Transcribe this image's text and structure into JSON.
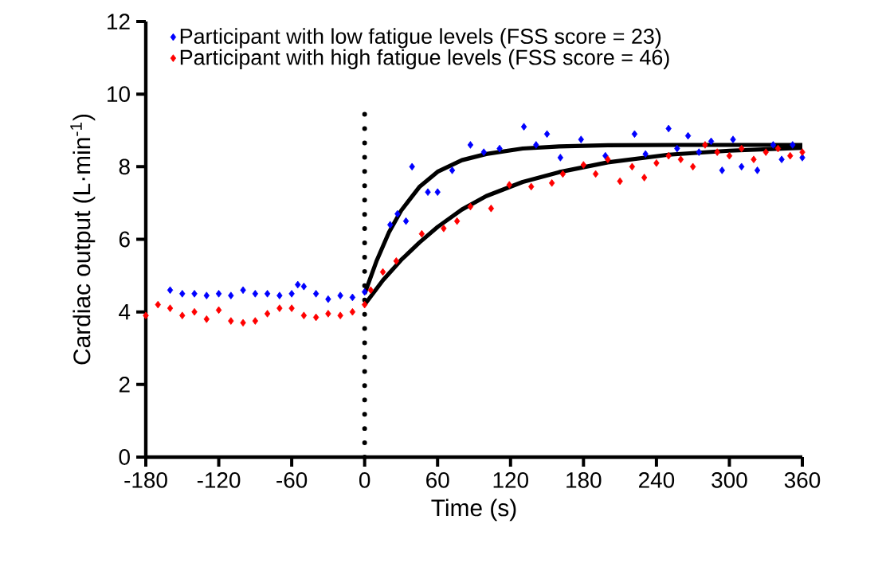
{
  "chart_data": {
    "type": "scatter",
    "xlabel": "Time (s)",
    "ylabel": "Cardiac output (L·min$^{-1}$)",
    "xlim": [
      -180,
      360
    ],
    "ylim": [
      0,
      12
    ],
    "xticks": [
      -180,
      -120,
      -60,
      0,
      60,
      120,
      180,
      240,
      300,
      360
    ],
    "yticks": [
      0,
      2,
      4,
      6,
      8,
      10,
      12
    ],
    "grid": false,
    "legend": "top left",
    "marker": "diamond",
    "series": [
      {
        "name": "Participant with low fatigue levels (FSS score = 23)",
        "color": "#0000ff",
        "x": [
          -160,
          -150,
          -140,
          -130,
          -120,
          -110,
          -100,
          -90,
          -80,
          -70,
          -60,
          -55,
          -50,
          -40,
          -30,
          -20,
          -10,
          0,
          21,
          27,
          34,
          39,
          52,
          60,
          72,
          87,
          98,
          111,
          131,
          141,
          150,
          161,
          178,
          198,
          222,
          231,
          250,
          257,
          266,
          275,
          285,
          294,
          303,
          310,
          323,
          336,
          343,
          352,
          360
        ],
        "values": [
          4.6,
          4.5,
          4.5,
          4.45,
          4.5,
          4.45,
          4.6,
          4.5,
          4.5,
          4.45,
          4.5,
          4.75,
          4.7,
          4.5,
          4.35,
          4.45,
          4.4,
          4.55,
          6.4,
          6.7,
          6.5,
          8.0,
          7.3,
          7.3,
          7.9,
          8.6,
          8.4,
          8.5,
          9.1,
          8.6,
          8.9,
          8.25,
          8.75,
          8.3,
          8.9,
          8.35,
          9.05,
          8.5,
          8.85,
          8.4,
          8.7,
          7.9,
          8.75,
          8.0,
          7.9,
          8.6,
          8.2,
          8.6,
          8.25
        ]
      },
      {
        "name": "Participant with high fatigue levels (FSS score = 46)",
        "color": "#ff0000",
        "x": [
          -180,
          -170,
          -160,
          -150,
          -140,
          -130,
          -120,
          -110,
          -100,
          -90,
          -80,
          -70,
          -60,
          -50,
          -40,
          -30,
          -20,
          -10,
          0,
          5,
          15,
          26,
          47,
          65,
          76,
          87,
          104,
          119,
          137,
          154,
          163,
          180,
          190,
          200,
          210,
          220,
          230,
          240,
          250,
          260,
          270,
          280,
          290,
          300,
          310,
          320,
          330,
          340,
          350,
          360
        ],
        "values": [
          3.9,
          4.2,
          4.1,
          3.9,
          4.0,
          3.8,
          4.05,
          3.75,
          3.7,
          3.75,
          3.95,
          4.1,
          4.1,
          3.9,
          3.85,
          3.95,
          3.9,
          4.0,
          4.2,
          4.6,
          5.1,
          5.4,
          6.15,
          6.3,
          6.5,
          6.9,
          6.85,
          7.5,
          7.45,
          7.55,
          7.8,
          8.05,
          7.8,
          8.2,
          7.6,
          8.0,
          7.7,
          8.1,
          8.3,
          8.2,
          8.0,
          8.6,
          8.4,
          8.3,
          8.5,
          8.2,
          8.4,
          8.5,
          8.3,
          8.4
        ]
      },
      {
        "type": "line",
        "color": "#000000",
        "line_style": "solid",
        "marker": "none",
        "x": [
          0,
          10,
          20,
          30,
          45,
          60,
          80,
          100,
          130,
          160,
          200,
          260,
          360
        ],
        "values": [
          4.5,
          5.42,
          6.19,
          6.79,
          7.44,
          7.86,
          8.18,
          8.35,
          8.5,
          8.56,
          8.59,
          8.6,
          8.6
        ]
      },
      {
        "type": "line",
        "color": "#000000",
        "line_style": "solid",
        "marker": "none",
        "x": [
          0,
          15,
          30,
          45,
          60,
          80,
          100,
          130,
          160,
          200,
          250,
          300,
          360
        ],
        "values": [
          4.2,
          4.87,
          5.43,
          5.91,
          6.34,
          6.82,
          7.19,
          7.58,
          7.85,
          8.12,
          8.33,
          8.44,
          8.52
        ]
      }
    ],
    "ref_lines": [
      {
        "axis": "x",
        "value": 0,
        "color": "#000000",
        "line_style": "dotted"
      }
    ]
  }
}
